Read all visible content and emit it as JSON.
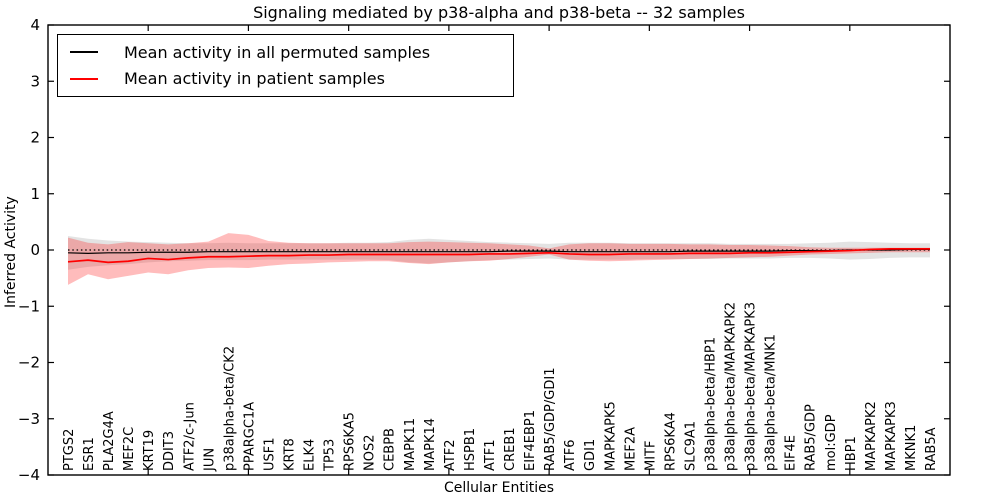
{
  "figure": {
    "title": "Signaling mediated by p38-alpha and p38-beta -- 32 samples",
    "xlabel": "Cellular Entities",
    "ylabel": "Inferred Activity"
  },
  "legend": {
    "entries": [
      {
        "label": "Mean activity in all permuted samples",
        "color": "#000000"
      },
      {
        "label": "Mean activity in patient samples",
        "color": "#ff0000"
      }
    ]
  },
  "colors": {
    "permuted_line": "#000000",
    "patient_line": "#ff0000",
    "permuted_band": "#b0b0b0",
    "patient_band": "#ff2222",
    "frame": "#000000",
    "background": "#ffffff"
  },
  "chart_data": {
    "type": "line",
    "title": "Signaling mediated by p38-alpha and p38-beta -- 32 samples",
    "xlabel": "Cellular Entities",
    "ylabel": "Inferred Activity",
    "ylim": [
      -4,
      4
    ],
    "yticks": [
      -4,
      -3,
      -2,
      -1,
      0,
      1,
      2,
      3,
      4
    ],
    "x_major_ticks": [
      0,
      5,
      10,
      15,
      20,
      25,
      30,
      35,
      40,
      45
    ],
    "grid": false,
    "legend_position": "upper left",
    "zero_line": {
      "y": 0,
      "style": "dotted",
      "color": "#000000"
    },
    "categories": [
      "PTGS2",
      "ESR1",
      "PLA2G4A",
      "MEF2C",
      "KRT19",
      "DDIT3",
      "ATF2/c-Jun",
      "JUN",
      "p38alpha-beta/CK2",
      "PPARGC1A",
      "USF1",
      "KRT8",
      "ELK4",
      "TP53",
      "RPS6KA5",
      "NOS2",
      "CEBPB",
      "MAPK11",
      "MAPK14",
      "ATF2",
      "HSPB1",
      "ATF1",
      "CREB1",
      "EIF4EBP1",
      "RAB5/GDP/GDI1",
      "ATF6",
      "GDI1",
      "MAPKAPK5",
      "MEF2A",
      "MITF",
      "RPS6KA4",
      "SLC9A1",
      "p38alpha-beta/HBP1",
      "p38alpha-beta/MAPKAPK2",
      "p38alpha-beta/MAPKAPK3",
      "p38alpha-beta/MNK1",
      "EIF4E",
      "RAB5/GDP",
      "mol:GDP",
      "HBP1",
      "MAPKAPK2",
      "MAPKAPK3",
      "MKNK1",
      "RAB5A"
    ],
    "series": [
      {
        "name": "Mean activity in all permuted samples",
        "color": "#000000",
        "band_color": "#b0b0b0",
        "values": [
          -0.05,
          -0.06,
          -0.05,
          -0.05,
          -0.04,
          -0.04,
          -0.04,
          -0.03,
          -0.03,
          -0.03,
          -0.03,
          -0.03,
          -0.03,
          -0.03,
          -0.03,
          -0.03,
          -0.03,
          -0.03,
          -0.03,
          -0.03,
          -0.03,
          -0.03,
          -0.02,
          -0.02,
          -0.02,
          -0.03,
          -0.03,
          -0.03,
          -0.03,
          -0.03,
          -0.03,
          -0.02,
          -0.02,
          -0.02,
          -0.02,
          -0.02,
          -0.01,
          -0.01,
          -0.01,
          0.0,
          0.0,
          0.0,
          0.01,
          0.01
        ],
        "band_upper": [
          0.25,
          0.2,
          0.17,
          0.15,
          0.14,
          0.13,
          0.12,
          0.12,
          0.13,
          0.12,
          0.12,
          0.12,
          0.12,
          0.12,
          0.13,
          0.13,
          0.14,
          0.18,
          0.2,
          0.18,
          0.16,
          0.14,
          0.13,
          0.12,
          0.11,
          0.13,
          0.13,
          0.13,
          0.12,
          0.12,
          0.12,
          0.12,
          0.12,
          0.11,
          0.11,
          0.11,
          0.11,
          0.12,
          0.13,
          0.15,
          0.14,
          0.13,
          0.12,
          0.12
        ],
        "band_lower": [
          -0.35,
          -0.3,
          -0.27,
          -0.25,
          -0.22,
          -0.2,
          -0.19,
          -0.18,
          -0.18,
          -0.18,
          -0.17,
          -0.17,
          -0.17,
          -0.17,
          -0.17,
          -0.17,
          -0.18,
          -0.22,
          -0.24,
          -0.22,
          -0.2,
          -0.18,
          -0.17,
          -0.16,
          -0.15,
          -0.17,
          -0.17,
          -0.17,
          -0.17,
          -0.16,
          -0.16,
          -0.16,
          -0.16,
          -0.15,
          -0.15,
          -0.15,
          -0.14,
          -0.14,
          -0.15,
          -0.17,
          -0.16,
          -0.14,
          -0.13,
          -0.13
        ]
      },
      {
        "name": "Mean activity in patient samples",
        "color": "#ff0000",
        "band_color": "#ff2222",
        "values": [
          -0.21,
          -0.18,
          -0.22,
          -0.2,
          -0.15,
          -0.17,
          -0.14,
          -0.12,
          -0.12,
          -0.11,
          -0.1,
          -0.1,
          -0.09,
          -0.09,
          -0.08,
          -0.08,
          -0.08,
          -0.08,
          -0.08,
          -0.08,
          -0.08,
          -0.07,
          -0.07,
          -0.06,
          -0.05,
          -0.07,
          -0.08,
          -0.08,
          -0.07,
          -0.07,
          -0.07,
          -0.06,
          -0.06,
          -0.06,
          -0.05,
          -0.05,
          -0.04,
          -0.03,
          -0.02,
          -0.01,
          0.01,
          0.02,
          0.02,
          0.02
        ],
        "band_upper": [
          0.22,
          0.13,
          0.1,
          0.14,
          0.12,
          0.1,
          0.12,
          0.15,
          0.3,
          0.27,
          0.16,
          0.13,
          0.12,
          0.12,
          0.12,
          0.12,
          0.12,
          0.14,
          0.15,
          0.14,
          0.13,
          0.12,
          0.1,
          0.08,
          0.03,
          0.1,
          0.12,
          0.12,
          0.11,
          0.11,
          0.11,
          0.1,
          0.1,
          0.09,
          0.09,
          0.08,
          0.07,
          0.05,
          0.04,
          0.04,
          0.04,
          0.04,
          0.04,
          0.04
        ],
        "band_lower": [
          -0.62,
          -0.43,
          -0.52,
          -0.46,
          -0.4,
          -0.43,
          -0.36,
          -0.32,
          -0.31,
          -0.32,
          -0.28,
          -0.25,
          -0.24,
          -0.22,
          -0.21,
          -0.2,
          -0.2,
          -0.23,
          -0.25,
          -0.22,
          -0.2,
          -0.19,
          -0.16,
          -0.12,
          -0.08,
          -0.17,
          -0.19,
          -0.2,
          -0.19,
          -0.18,
          -0.17,
          -0.16,
          -0.15,
          -0.14,
          -0.13,
          -0.12,
          -0.1,
          -0.08,
          -0.07,
          -0.06,
          -0.05,
          -0.04,
          -0.04,
          -0.04
        ]
      }
    ]
  }
}
